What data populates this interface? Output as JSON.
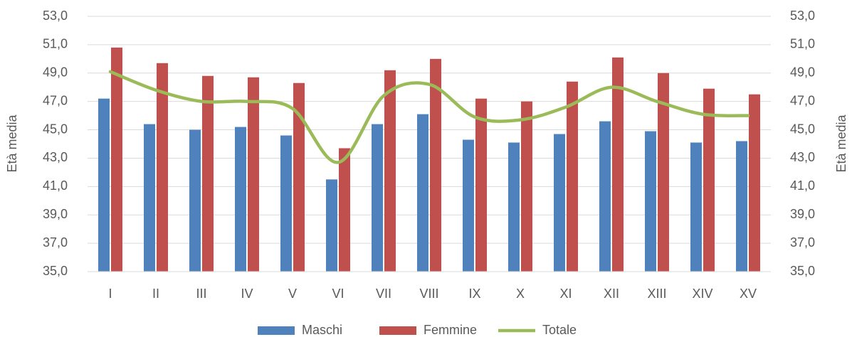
{
  "chart_data": {
    "type": "bar_line",
    "y_label": "Età media",
    "y2_label": "Età media",
    "categories": [
      "I",
      "II",
      "III",
      "IV",
      "V",
      "VI",
      "VII",
      "VIII",
      "IX",
      "X",
      "XI",
      "XII",
      "XIII",
      "XIV",
      "XV"
    ],
    "series": [
      {
        "name": "Maschi",
        "type": "bar",
        "color": "#4f81bd",
        "values": [
          47.2,
          45.4,
          45.0,
          45.2,
          44.6,
          41.5,
          45.4,
          46.1,
          44.3,
          44.1,
          44.7,
          45.6,
          44.9,
          44.1,
          44.2
        ]
      },
      {
        "name": "Femmine",
        "type": "bar",
        "color": "#c0504d",
        "values": [
          50.8,
          49.7,
          48.8,
          48.7,
          48.3,
          43.7,
          49.2,
          50.0,
          47.2,
          47.0,
          48.4,
          50.1,
          49.0,
          47.9,
          47.5
        ]
      },
      {
        "name": "Totale",
        "type": "line",
        "color": "#9bbb59",
        "values": [
          49.1,
          47.8,
          47.0,
          47.0,
          46.5,
          42.7,
          47.4,
          48.2,
          45.9,
          45.7,
          46.6,
          48.0,
          47.0,
          46.1,
          46.0
        ]
      }
    ],
    "ylim": [
      35,
      53
    ],
    "yticks": [
      {
        "value": 35,
        "label": "35,0"
      },
      {
        "value": 37,
        "label": "37,0"
      },
      {
        "value": 39,
        "label": "39,0"
      },
      {
        "value": 41,
        "label": "41,0"
      },
      {
        "value": 43,
        "label": "43,0"
      },
      {
        "value": 45,
        "label": "45,0"
      },
      {
        "value": 47,
        "label": "47,0"
      },
      {
        "value": 49,
        "label": "49,0"
      },
      {
        "value": 51,
        "label": "51,0"
      },
      {
        "value": 53,
        "label": "53,0"
      }
    ],
    "y2lim": [
      35,
      53
    ],
    "y2ticks": [
      {
        "value": 35,
        "label": "35,0"
      },
      {
        "value": 37,
        "label": "37,0"
      },
      {
        "value": 39,
        "label": "39,0"
      },
      {
        "value": 41,
        "label": "41,0"
      },
      {
        "value": 43,
        "label": "43,0"
      },
      {
        "value": 45,
        "label": "45,0"
      },
      {
        "value": 47,
        "label": "47,0"
      },
      {
        "value": 49,
        "label": "49,0"
      },
      {
        "value": 51,
        "label": "51,0"
      },
      {
        "value": 53,
        "label": "53,0"
      }
    ],
    "grid": true,
    "legend": "bottom"
  }
}
